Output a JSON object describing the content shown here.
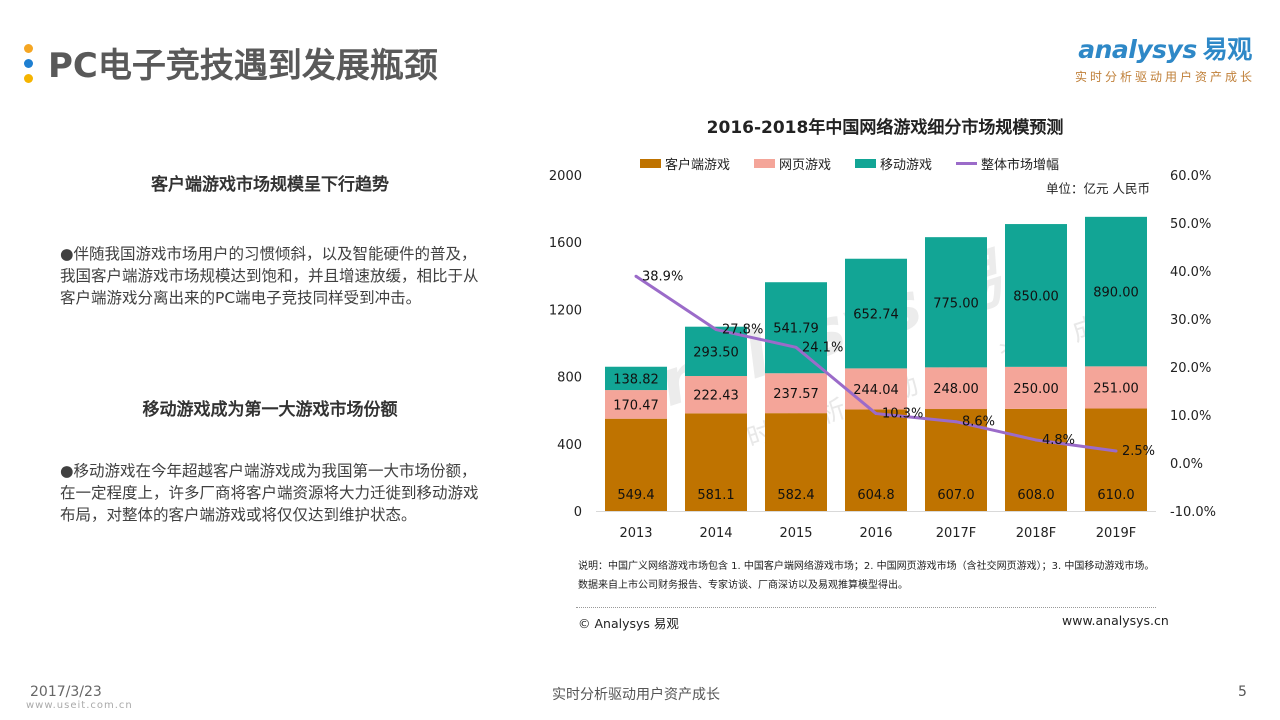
{
  "header": {
    "title": "PC电子竞技遇到发展瓶颈",
    "dot_colors": [
      "#f5a623",
      "#1e7fd1",
      "#f5b400"
    ],
    "logo_text": "nalysys",
    "logo_initial": "a",
    "logo_cn": "易观",
    "logo_slogan": "实时分析驱动用户资产成长"
  },
  "sections": [
    {
      "heading": "客户端游戏市场规模呈下行趋势",
      "body": "●伴随我国游戏市场用户的习惯倾斜，以及智能硬件的普及，我国客户端游戏市场规模达到饱和，并且增速放缓，相比于从客户端游戏分离出来的PC端电子竞技同样受到冲击。"
    },
    {
      "heading": "移动游戏成为第一大游戏市场份额",
      "body": "●移动游戏在今年超越客户端游戏成为我国第一大市场份额，在一定程度上，许多厂商将客户端资源将大力迁徙到移动游戏布局，对整体的客户端游戏或将仅仅达到维护状态。"
    }
  ],
  "chart_data": {
    "type": "bar",
    "stacked": true,
    "title": "2016-2018年中国网络游戏细分市场规模预测",
    "unit": "单位：亿元 人民币",
    "categories": [
      "2013",
      "2014",
      "2015",
      "2016",
      "2017F",
      "2018F",
      "2019F"
    ],
    "series": [
      {
        "name": "客户端游戏",
        "type": "bar",
        "color": "#bf7300",
        "values": [
          549.4,
          581.1,
          582.4,
          604.8,
          607.0,
          608.0,
          610.0
        ],
        "labels": [
          "549.4",
          "581.1",
          "582.4",
          "604.8",
          "607.0",
          "608.0",
          "610.0"
        ]
      },
      {
        "name": "网页游戏",
        "type": "bar",
        "color": "#f4a599",
        "values": [
          170.47,
          222.43,
          237.57,
          244.04,
          248.0,
          250.0,
          251.0
        ],
        "labels": [
          "170.47",
          "222.43",
          "237.57",
          "244.04",
          "248.00",
          "250.00",
          "251.00"
        ]
      },
      {
        "name": "移动游戏",
        "type": "bar",
        "color": "#12a595",
        "values": [
          138.82,
          293.5,
          541.79,
          652.74,
          775.0,
          850.0,
          890.0
        ],
        "labels": [
          "138.82",
          "293.50",
          "541.79",
          "652.74",
          "775.00",
          "850.00",
          "890.00"
        ]
      },
      {
        "name": "整体市场增幅",
        "type": "line",
        "axis": "right",
        "color": "#9b6bc9",
        "values": [
          38.9,
          27.8,
          24.1,
          10.3,
          8.6,
          4.8,
          2.5
        ],
        "labels": [
          "38.9%",
          "27.8%",
          "24.1%",
          "10.3%",
          "8.6%",
          "4.8%",
          "2.5%"
        ]
      }
    ],
    "y_left": {
      "min": 0,
      "max": 2000,
      "ticks": [
        "0",
        "400",
        "800",
        "1200",
        "1600",
        "2000"
      ],
      "tick_values": [
        0,
        400,
        800,
        1200,
        1600,
        2000
      ]
    },
    "y_right": {
      "min": -10,
      "max": 60,
      "ticks": [
        "-10.0%",
        "0.0%",
        "10.0%",
        "20.0%",
        "30.0%",
        "40.0%",
        "50.0%",
        "60.0%"
      ],
      "tick_values": [
        -10,
        0,
        10,
        20,
        30,
        40,
        50,
        60
      ]
    },
    "grid": false,
    "legend": "top"
  },
  "chart_footer": {
    "note": "说明：中国广义网络游戏市场包含 1. 中国客户端网络游戏市场；2. 中国网页游戏市场（含社交网页游戏）；3. 中国移动游戏市场。数据来自上市公司财务报告、专家访谈、厂商深访以及易观推算模型得出。",
    "copyright": "© Analysys 易观",
    "website": "www.analysys.cn"
  },
  "watermark": {
    "main": "nalysys 易观",
    "sub": "实时分析驱动用户资产成长"
  },
  "footer": {
    "date": "2017/3/23",
    "source_watermark": "www.useit.com.cn",
    "slogan": "实时分析驱动用户资产成长",
    "page": "5"
  }
}
